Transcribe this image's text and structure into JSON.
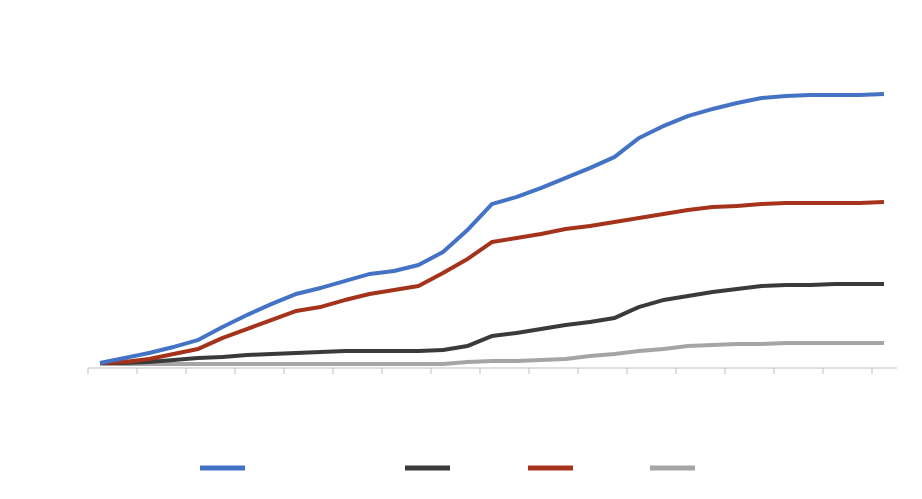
{
  "chart_data": {
    "type": "line",
    "categories": [
      null,
      null,
      null,
      null,
      null,
      null,
      null,
      null,
      null,
      null,
      null,
      null,
      null,
      null,
      null,
      null,
      null,
      null,
      null,
      null,
      null,
      null,
      null,
      null,
      null,
      null,
      null,
      null,
      null,
      null,
      null,
      null,
      null
    ],
    "series": [
      {
        "color": "#4472c4",
        "values": [
          5,
          10,
          15,
          21,
          28,
          41,
          53,
          64,
          74,
          80,
          87,
          94,
          97,
          103,
          116,
          138,
          164,
          171,
          180,
          190,
          200,
          211,
          230,
          242,
          252,
          259,
          265,
          270,
          272,
          273,
          273,
          273,
          274
        ]
      },
      {
        "color": "#3a3a3a",
        "values": [
          5,
          5,
          6,
          8,
          10,
          11,
          13,
          14,
          15,
          16,
          17,
          17,
          17,
          17,
          18,
          22,
          32,
          35,
          39,
          43,
          46,
          50,
          61,
          68,
          72,
          76,
          79,
          82,
          83,
          83,
          84,
          84,
          84
        ]
      },
      {
        "color": "#a5331c",
        "values": [
          5,
          6,
          9,
          14,
          19,
          30,
          39,
          48,
          57,
          61,
          68,
          74,
          78,
          82,
          95,
          109,
          126,
          130,
          134,
          139,
          142,
          146,
          150,
          154,
          158,
          161,
          162,
          164,
          165,
          165,
          165,
          165,
          166
        ]
      },
      {
        "color": "#a5a5a5",
        "values": [
          4,
          4,
          4,
          4,
          4,
          4,
          4,
          4,
          4,
          4,
          4,
          4,
          4,
          4,
          4,
          6,
          7,
          7,
          8,
          9,
          12,
          14,
          17,
          19,
          22,
          23,
          24,
          24,
          25,
          25,
          25,
          25,
          25
        ]
      }
    ],
    "ylim": [
      0,
      300
    ]
  }
}
